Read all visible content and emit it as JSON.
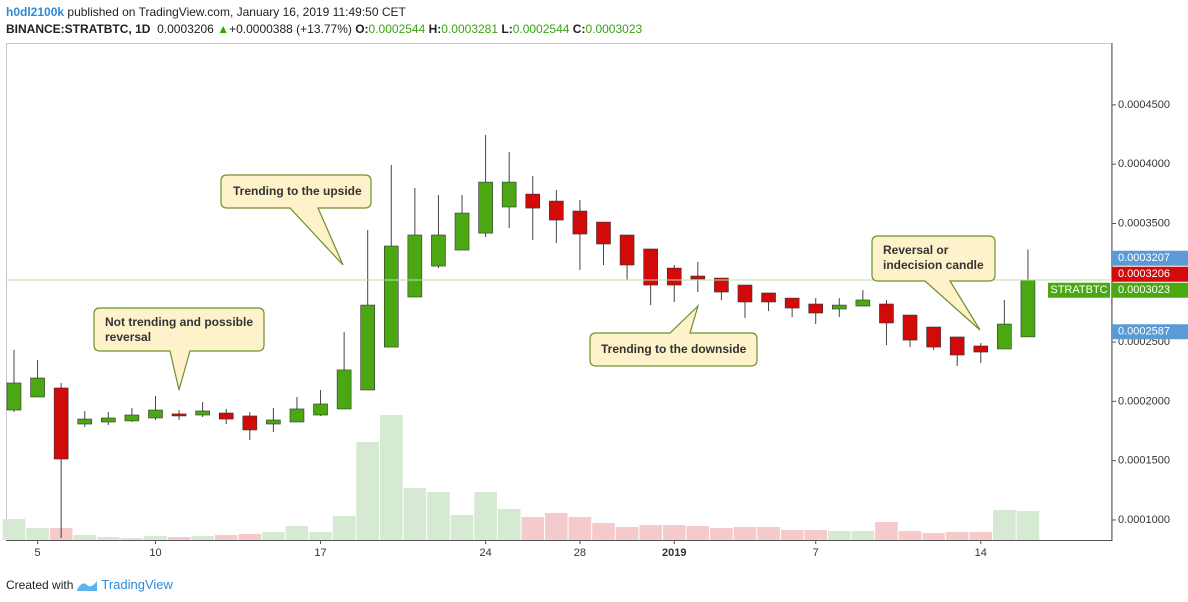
{
  "header": {
    "author": "h0dl2100k",
    "published": "published on TradingView.com, January 16, 2019 11:49:50 CET",
    "symbol": "BINANCE:STRATBTC, 1D",
    "price": "0.0003206",
    "arrow": "▲",
    "change": "+0.0000388 (+13.77%)",
    "o": "O:",
    "h": "H:",
    "l": "L:",
    "c": "C:"
  },
  "footer": {
    "text": "Created with",
    "brand": "TradingView"
  },
  "annotations": [
    "Trending to the upside",
    "Not trending and possible reversal",
    "Trending to the downside",
    "Reversal or indecision candle"
  ],
  "chart_data": {
    "type": "candlestick",
    "categories": [
      null,
      "5",
      null,
      null,
      null,
      null,
      "10",
      null,
      null,
      null,
      null,
      null,
      null,
      "17",
      null,
      null,
      null,
      null,
      null,
      null,
      "24",
      null,
      null,
      null,
      "28",
      null,
      null,
      null,
      "2019",
      null,
      null,
      null,
      null,
      null,
      "7",
      null,
      null,
      null,
      null,
      null,
      null,
      "14",
      null,
      null
    ],
    "open": [
      0.0001927,
      0.0002037,
      0.0002113,
      0.0001809,
      0.0001826,
      0.0001835,
      0.000186,
      0.0001894,
      0.0001885,
      0.0001902,
      0.0001877,
      0.0001809,
      0.0001826,
      0.0001885,
      0.0001936,
      0.0002096,
      0.0002458,
      0.000288,
      0.0003141,
      0.0003276,
      0.0003419,
      0.0003639,
      0.0003748,
      0.0003689,
      0.0003605,
      0.0003512,
      0.0003403,
      0.0003285,
      0.0003124,
      0.0003057,
      0.000304,
      0.0002981,
      0.0002914,
      0.0002871,
      0.0002821,
      0.0002779,
      0.0002804,
      0.0002821,
      0.0002728,
      0.0002627,
      0.0002543,
      0.0002467,
      0.0002442,
      0.0002544
    ],
    "high": [
      0.0002433,
      0.0002349,
      0.0002155,
      0.0001919,
      0.000191,
      0.0001944,
      0.0002045,
      0.0001927,
      0.0001995,
      0.0001936,
      0.000191,
      0.0001944,
      0.0002037,
      0.0002096,
      0.0002585,
      0.0003445,
      0.0003993,
      0.0003799,
      0.000374,
      0.000374,
      0.0004246,
      0.0004102,
      0.00039,
      0.0003782,
      0.0003698,
      0.0003512,
      0.0003403,
      0.0003285,
      0.000315,
      0.0003175,
      0.000304,
      0.0002981,
      0.0002914,
      0.0002871,
      0.0002871,
      0.0002871,
      0.0002939,
      0.0002855,
      0.0002728,
      0.0002627,
      0.0002543,
      0.0002492,
      0.0002855,
      0.0003281
    ],
    "low": [
      0.000191,
      0.0002037,
      8.48e-05,
      0.0001784,
      0.0001801,
      0.0001826,
      0.0001843,
      0.0001843,
      0.0001868,
      0.0001809,
      0.0001674,
      0.0001742,
      0.0001826,
      0.0001877,
      0.0001936,
      0.0002096,
      0.0002458,
      0.000288,
      0.0003124,
      0.0003276,
      0.0003386,
      0.0003462,
      0.000336,
      0.0003335,
      0.0003108,
      0.000315,
      0.0003023,
      0.0002812,
      0.0002838,
      0.0002922,
      0.0002855,
      0.0002703,
      0.0002762,
      0.0002711,
      0.0002652,
      0.0002711,
      0.0002804,
      0.0002475,
      0.0002458,
      0.0002433,
      0.0002298,
      0.0002324,
      0.0002442,
      0.0002544
    ],
    "close": [
      0.0002155,
      0.0002197,
      0.0001514,
      0.0001851,
      0.000186,
      0.0001885,
      0.0001927,
      0.0001877,
      0.0001919,
      0.0001851,
      0.0001759,
      0.0001843,
      0.0001936,
      0.0001978,
      0.0002265,
      0.0002812,
      0.000331,
      0.0003403,
      0.0003403,
      0.0003588,
      0.0003849,
      0.0003849,
      0.000363,
      0.0003529,
      0.0003411,
      0.0003327,
      0.000315,
      0.0002981,
      0.0002981,
      0.0003032,
      0.0002922,
      0.0002838,
      0.0002838,
      0.0002787,
      0.0002745,
      0.0002812,
      0.0002855,
      0.0002661,
      0.0002517,
      0.0002458,
      0.0002391,
      0.0002416,
      0.0002652,
      0.0003023
    ],
    "volume": [
      21,
      12,
      12,
      5,
      3,
      2,
      4,
      3,
      4,
      5,
      6,
      8,
      14,
      8,
      24,
      98,
      125,
      52,
      48,
      25,
      48,
      31,
      23,
      27,
      23,
      17,
      13,
      15,
      15,
      14,
      12,
      13,
      13,
      10,
      10,
      9,
      9,
      18,
      9,
      7,
      8,
      8,
      30,
      29
    ],
    "up_color": "#4ca812",
    "down_color": "#d20a0a",
    "volume_up_color": "#d6e9d2",
    "volume_down_color": "#f4caca",
    "ylim": [
      8.31e-05,
      0.0005022
    ],
    "yticks": [
      {
        "value": 0.0001,
        "label": "0.0001000"
      },
      {
        "value": 0.00015,
        "label": "0.0001500"
      },
      {
        "value": 0.0002,
        "label": "0.0002000"
      },
      {
        "value": 0.00025,
        "label": "0.0002500"
      },
      {
        "value": 0.00035,
        "label": "0.0003500"
      },
      {
        "value": 0.0004,
        "label": "0.0004000"
      },
      {
        "value": 0.00045,
        "label": "0.0004500"
      }
    ],
    "grid": false,
    "price_labels": [
      {
        "value": 0.0003206,
        "color": "#d20a0a"
      },
      {
        "value": 0.0003207,
        "color": "#5b9bd5"
      },
      {
        "value": 0.0003023,
        "color": "#4ca812",
        "name": "STRATBTC"
      },
      {
        "value": 0.0002587,
        "color": "#5b9bd5"
      }
    ]
  }
}
